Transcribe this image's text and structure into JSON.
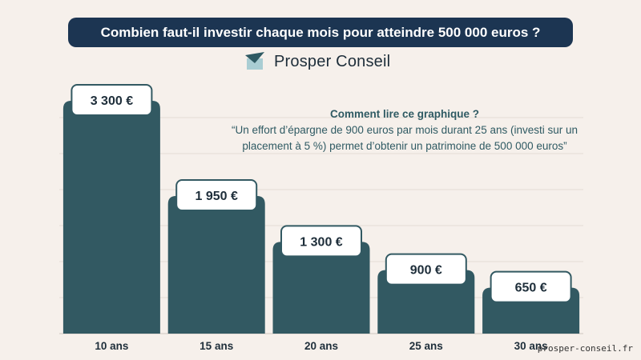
{
  "title": "Combien faut-il investir chaque mois pour atteindre 500 000 euros ?",
  "brand": {
    "name": "Prosper Conseil",
    "icon": "paper-plane-icon"
  },
  "annotation": {
    "title": "Comment lire ce graphique ?",
    "body": "“Un effort d’épargne de 900 euros par mois durant 25 ans (investi sur un placement à 5 %) permet d’obtenir un patrimoine de 500 000 euros”"
  },
  "footer": "prosper-conseil.fr",
  "colors": {
    "bar": "#325962",
    "banner": "#1c3552",
    "background": "#f6f0eb",
    "label_border": "#325962"
  },
  "chart_data": {
    "type": "bar",
    "categories": [
      "10 ans",
      "15 ans",
      "20 ans",
      "25 ans",
      "30 ans"
    ],
    "values": [
      3300,
      1950,
      1300,
      900,
      650
    ],
    "value_labels": [
      "3 300 €",
      "1 950 €",
      "1 300 €",
      "900 €",
      "650 €"
    ],
    "title": "Combien faut-il investir chaque mois pour atteindre 500 000 euros ?",
    "xlabel": "",
    "ylabel": "",
    "ylim": [
      0,
      3300
    ],
    "grid": true,
    "legend": "none"
  }
}
